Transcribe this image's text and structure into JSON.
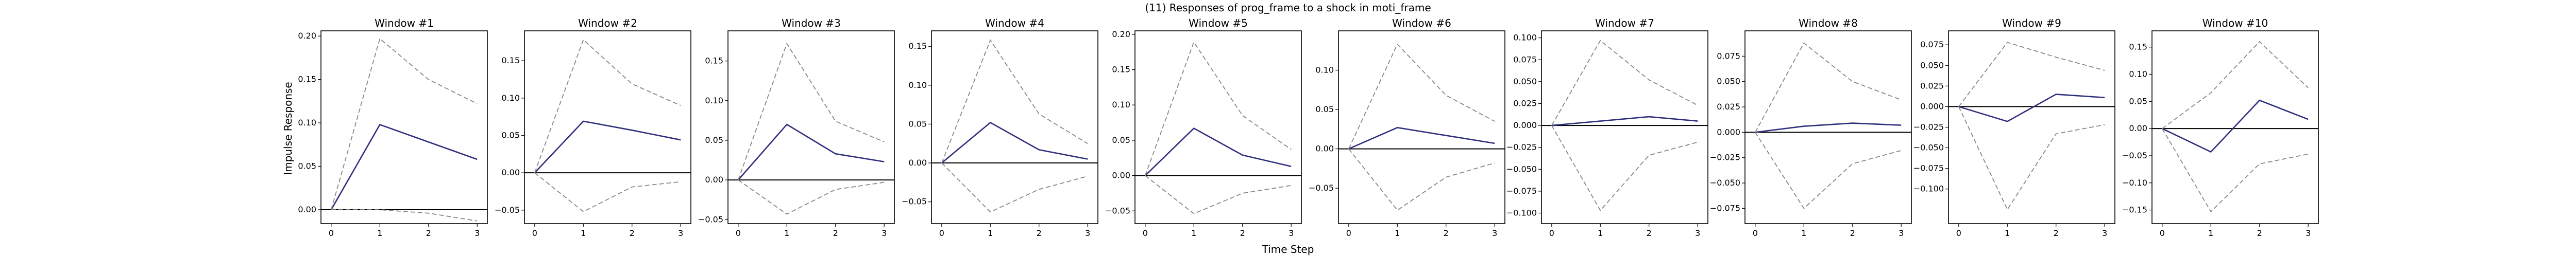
{
  "figure": {
    "title": "(11) Responses of prog_frame to a shock in moti_frame",
    "xlabel": "Time Step",
    "ylabel": "Impulse Response"
  },
  "colors": {
    "irf_line": "#2e2e7d",
    "band_line": "#888888",
    "zero_line": "#000000",
    "frame": "#000000"
  },
  "chart_data": [
    {
      "type": "line",
      "title": "Window #1",
      "x": [
        0,
        1,
        2,
        3
      ],
      "xticks": [
        0,
        1,
        2,
        3
      ],
      "ylim": [
        -0.016,
        0.206
      ],
      "yticks": [
        0.0,
        0.05,
        0.1,
        0.15,
        0.2
      ],
      "yticklabels": [
        "0.00",
        "0.05",
        "0.10",
        "0.15",
        "0.20"
      ],
      "grid": false,
      "series": [
        {
          "role": "irf",
          "values": [
            0.0,
            0.098,
            0.078,
            0.058
          ]
        },
        {
          "role": "upper",
          "values": [
            0.0,
            0.197,
            0.15,
            0.122
          ]
        },
        {
          "role": "lower",
          "values": [
            0.0,
            0.0,
            -0.004,
            -0.013
          ]
        }
      ]
    },
    {
      "type": "line",
      "title": "Window #2",
      "x": [
        0,
        1,
        2,
        3
      ],
      "xticks": [
        0,
        1,
        2,
        3
      ],
      "ylim": [
        -0.068,
        0.19
      ],
      "yticks": [
        -0.05,
        0.0,
        0.05,
        0.1,
        0.15
      ],
      "yticklabels": [
        "−0.05",
        "0.00",
        "0.05",
        "0.10",
        "0.15"
      ],
      "grid": false,
      "series": [
        {
          "role": "irf",
          "values": [
            0.0,
            0.069,
            0.057,
            0.044
          ]
        },
        {
          "role": "upper",
          "values": [
            0.0,
            0.178,
            0.119,
            0.09
          ]
        },
        {
          "role": "lower",
          "values": [
            0.0,
            -0.052,
            -0.019,
            -0.012
          ]
        }
      ]
    },
    {
      "type": "line",
      "title": "Window #3",
      "x": [
        0,
        1,
        2,
        3
      ],
      "xticks": [
        0,
        1,
        2,
        3
      ],
      "ylim": [
        -0.055,
        0.188
      ],
      "yticks": [
        -0.05,
        0.0,
        0.05,
        0.1,
        0.15
      ],
      "yticklabels": [
        "−0.05",
        "0.00",
        "0.05",
        "0.10",
        "0.15"
      ],
      "grid": false,
      "series": [
        {
          "role": "irf",
          "values": [
            0.0,
            0.07,
            0.033,
            0.023
          ]
        },
        {
          "role": "upper",
          "values": [
            0.0,
            0.172,
            0.074,
            0.048
          ]
        },
        {
          "role": "lower",
          "values": [
            0.0,
            -0.043,
            -0.012,
            -0.003
          ]
        }
      ]
    },
    {
      "type": "line",
      "title": "Window #4",
      "x": [
        0,
        1,
        2,
        3
      ],
      "xticks": [
        0,
        1,
        2,
        3
      ],
      "ylim": [
        -0.078,
        0.17
      ],
      "yticks": [
        -0.05,
        0.0,
        0.05,
        0.1,
        0.15
      ],
      "yticklabels": [
        "−0.05",
        "0.00",
        "0.05",
        "0.10",
        "0.15"
      ],
      "grid": false,
      "series": [
        {
          "role": "irf",
          "values": [
            0.0,
            0.052,
            0.017,
            0.005
          ]
        },
        {
          "role": "upper",
          "values": [
            0.0,
            0.158,
            0.063,
            0.025
          ]
        },
        {
          "role": "lower",
          "values": [
            0.0,
            -0.063,
            -0.034,
            -0.017
          ]
        }
      ]
    },
    {
      "type": "line",
      "title": "Window #5",
      "x": [
        0,
        1,
        2,
        3
      ],
      "xticks": [
        0,
        1,
        2,
        3
      ],
      "ylim": [
        -0.068,
        0.205
      ],
      "yticks": [
        -0.05,
        0.0,
        0.05,
        0.1,
        0.15,
        0.2
      ],
      "yticklabels": [
        "−0.05",
        "0.00",
        "0.05",
        "0.10",
        "0.15",
        "0.20"
      ],
      "grid": false,
      "series": [
        {
          "role": "irf",
          "values": [
            0.0,
            0.067,
            0.029,
            0.013
          ]
        },
        {
          "role": "upper",
          "values": [
            0.0,
            0.189,
            0.085,
            0.037
          ]
        },
        {
          "role": "lower",
          "values": [
            0.0,
            -0.054,
            -0.025,
            -0.014
          ]
        }
      ]
    },
    {
      "type": "line",
      "title": "Window #6",
      "x": [
        0,
        1,
        2,
        3
      ],
      "xticks": [
        0,
        1,
        2,
        3
      ],
      "ylim": [
        -0.095,
        0.15
      ],
      "yticks": [
        -0.05,
        0.0,
        0.05,
        0.1
      ],
      "yticklabels": [
        "−0.05",
        "0.00",
        "0.05",
        "0.10"
      ],
      "grid": false,
      "series": [
        {
          "role": "irf",
          "values": [
            0.0,
            0.027,
            0.017,
            0.007
          ]
        },
        {
          "role": "upper",
          "values": [
            0.0,
            0.133,
            0.068,
            0.035
          ]
        },
        {
          "role": "lower",
          "values": [
            0.0,
            -0.078,
            -0.036,
            -0.018
          ]
        }
      ]
    },
    {
      "type": "line",
      "title": "Window #7",
      "x": [
        0,
        1,
        2,
        3
      ],
      "xticks": [
        0,
        1,
        2,
        3
      ],
      "ylim": [
        -0.112,
        0.108
      ],
      "yticks": [
        -0.1,
        -0.075,
        -0.05,
        -0.025,
        0.0,
        0.025,
        0.05,
        0.075,
        0.1
      ],
      "yticklabels": [
        "−0.100",
        "−0.075",
        "−0.050",
        "−0.025",
        "0.000",
        "0.025",
        "0.050",
        "0.075",
        "0.100"
      ],
      "grid": false,
      "series": [
        {
          "role": "irf",
          "values": [
            0.0,
            0.005,
            0.01,
            0.005
          ]
        },
        {
          "role": "upper",
          "values": [
            0.0,
            0.097,
            0.052,
            0.023
          ]
        },
        {
          "role": "lower",
          "values": [
            0.0,
            -0.097,
            -0.034,
            -0.019
          ]
        }
      ]
    },
    {
      "type": "line",
      "title": "Window #8",
      "x": [
        0,
        1,
        2,
        3
      ],
      "xticks": [
        0,
        1,
        2,
        3
      ],
      "ylim": [
        -0.09,
        0.1
      ],
      "yticks": [
        -0.075,
        -0.05,
        -0.025,
        0.0,
        0.025,
        0.05,
        0.075
      ],
      "yticklabels": [
        "−0.075",
        "−0.050",
        "−0.025",
        "0.000",
        "0.025",
        "0.050",
        "0.075"
      ],
      "grid": false,
      "series": [
        {
          "role": "irf",
          "values": [
            0.0,
            0.006,
            0.009,
            0.007
          ]
        },
        {
          "role": "upper",
          "values": [
            0.0,
            0.088,
            0.05,
            0.032
          ]
        },
        {
          "role": "lower",
          "values": [
            0.0,
            -0.075,
            -0.031,
            -0.018
          ]
        }
      ]
    },
    {
      "type": "line",
      "title": "Window #9",
      "x": [
        0,
        1,
        2,
        3
      ],
      "xticks": [
        0,
        1,
        2,
        3
      ],
      "ylim": [
        -0.142,
        0.092
      ],
      "yticks": [
        -0.1,
        -0.075,
        -0.05,
        -0.025,
        0.0,
        0.025,
        0.05,
        0.075
      ],
      "yticklabels": [
        "−0.100",
        "−0.075",
        "−0.050",
        "−0.025",
        "0.000",
        "0.025",
        "0.050",
        "0.075"
      ],
      "grid": false,
      "series": [
        {
          "role": "irf",
          "values": [
            0.0,
            -0.018,
            0.015,
            0.011
          ]
        },
        {
          "role": "upper",
          "values": [
            0.0,
            0.078,
            0.06,
            0.044
          ]
        },
        {
          "role": "lower",
          "values": [
            0.0,
            -0.125,
            -0.033,
            -0.022
          ]
        }
      ]
    },
    {
      "type": "line",
      "title": "Window #10",
      "x": [
        0,
        1,
        2,
        3
      ],
      "xticks": [
        0,
        1,
        2,
        3
      ],
      "ylim": [
        -0.175,
        0.18
      ],
      "yticks": [
        -0.15,
        -0.1,
        -0.05,
        0.0,
        0.05,
        0.1,
        0.15
      ],
      "yticklabels": [
        "−0.15",
        "−0.10",
        "−0.05",
        "0.00",
        "0.05",
        "0.10",
        "0.15"
      ],
      "grid": false,
      "series": [
        {
          "role": "irf",
          "values": [
            0.0,
            -0.043,
            0.052,
            0.017
          ]
        },
        {
          "role": "upper",
          "values": [
            0.0,
            0.066,
            0.16,
            0.075
          ]
        },
        {
          "role": "lower",
          "values": [
            0.0,
            -0.153,
            -0.065,
            -0.047
          ]
        }
      ]
    }
  ]
}
